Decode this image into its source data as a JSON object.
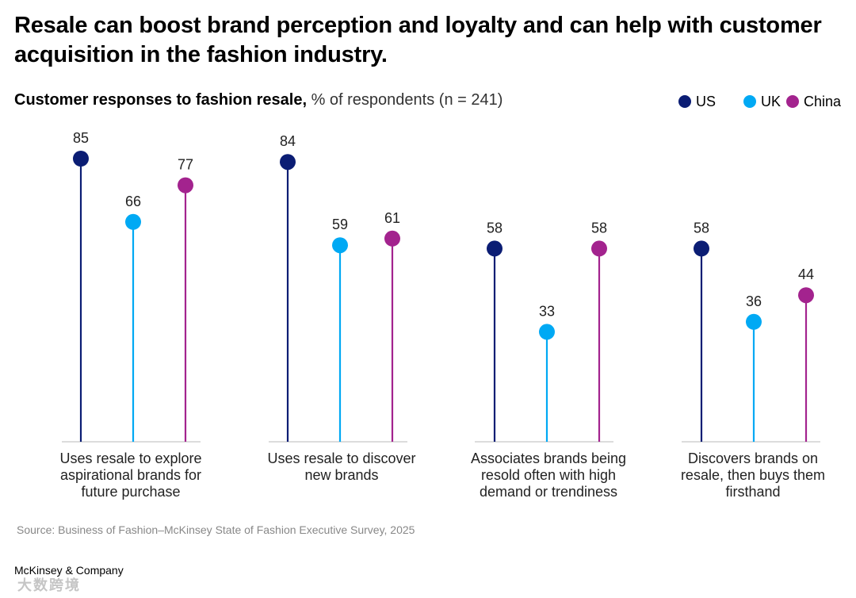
{
  "headline": "Resale can boost brand perception and loyalty and can help with customer acquisition in the fashion industry.",
  "subtitle_bold": "Customer responses to fashion resale,",
  "subtitle_regular": " % of respondents (n = 241)",
  "legend": [
    {
      "name": "US",
      "color": "#0b1d74"
    },
    {
      "name": "UK",
      "color": "#00a9f4"
    },
    {
      "name": "China",
      "color": "#a3238e"
    }
  ],
  "source": "Source: Business of Fashion–McKinsey State of Fashion Executive Survey, 2025",
  "logo": "McKinsey & Company",
  "watermark": "大数跨境",
  "chart_data": {
    "type": "lollipop",
    "title": "Customer responses to fashion resale",
    "ylabel": "% of respondents (n = 241)",
    "ylim": [
      0,
      100
    ],
    "grid": false,
    "legend_position": "top-right",
    "categories": [
      "Uses resale to explore aspirational brands for future purchase",
      "Uses resale to discover new brands",
      "Associates brands being resold often with high demand or trendiness",
      "Discovers brands on resale, then buys them firsthand"
    ],
    "series": [
      {
        "name": "US",
        "color": "#0b1d74",
        "values": [
          85,
          84,
          58,
          58
        ]
      },
      {
        "name": "UK",
        "color": "#00a9f4",
        "values": [
          66,
          59,
          33,
          36
        ]
      },
      {
        "name": "China",
        "color": "#a3238e",
        "values": [
          77,
          61,
          58,
          44
        ]
      }
    ]
  }
}
